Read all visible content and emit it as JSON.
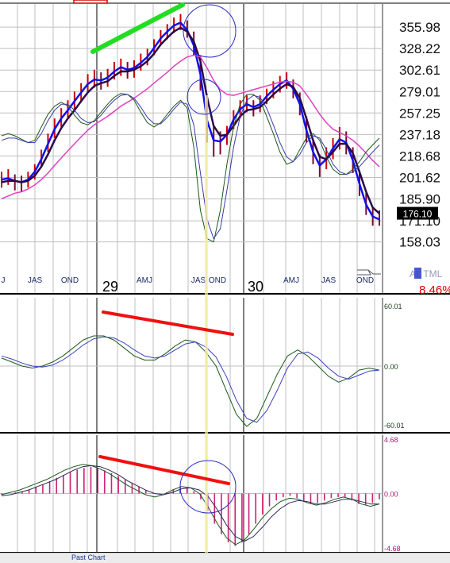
{
  "chart_data": [
    {
      "type": "line",
      "panel": "price",
      "y_scale": "log",
      "ylim": [
        150,
        385
      ],
      "y_ticks": [
        "355.98",
        "328.22",
        "302.61",
        "279.01",
        "257.25",
        "237.18",
        "218.68",
        "201.62",
        "185.90",
        "171.10",
        "158.03"
      ],
      "last_price": "176.10",
      "year_labels": [
        "29",
        "30"
      ],
      "month_labels": [
        "J",
        "JAS",
        "OND",
        "AMJ",
        "JAS",
        "OND",
        "AMJ",
        "JAS",
        "OND"
      ],
      "corner_text": "AL TML",
      "change": "8.46%",
      "series": [
        {
          "role": "price_high",
          "color": "#cc0000",
          "values": [
            206,
            208,
            204,
            203,
            206,
            212,
            224,
            238,
            252,
            262,
            270,
            279,
            288,
            298,
            303,
            300,
            304,
            312,
            316,
            312,
            314,
            322,
            328,
            340,
            352,
            360,
            369,
            374,
            365,
            350,
            320,
            270,
            245,
            240,
            245,
            260,
            270,
            275,
            270,
            275,
            282,
            290,
            296,
            300,
            292,
            278,
            254,
            232,
            220,
            226,
            234,
            244,
            240,
            226,
            207,
            190,
            180,
            178
          ]
        },
        {
          "role": "price_low",
          "color": "#cc0000",
          "values": [
            194,
            196,
            192,
            191,
            194,
            200,
            210,
            222,
            234,
            244,
            252,
            261,
            268,
            278,
            283,
            281,
            284,
            292,
            296,
            293,
            294,
            302,
            308,
            320,
            332,
            340,
            348,
            352,
            342,
            320,
            280,
            230,
            218,
            220,
            228,
            242,
            252,
            258,
            254,
            258,
            266,
            272,
            278,
            282,
            272,
            255,
            230,
            212,
            202,
            208,
            216,
            224,
            220,
            205,
            188,
            175,
            168,
            168
          ]
        },
        {
          "role": "ma_fast",
          "color": "#1010ee",
          "values": [
            200,
            201,
            199,
            198,
            200,
            206,
            216,
            229,
            242,
            252,
            260,
            269,
            278,
            287,
            292,
            291,
            294,
            301,
            306,
            303,
            305,
            311,
            318,
            329,
            341,
            350,
            358,
            362,
            352,
            332,
            298,
            250,
            232,
            231,
            237,
            251,
            261,
            266,
            263,
            266,
            274,
            281,
            287,
            291,
            282,
            266,
            241,
            222,
            211,
            216,
            225,
            233,
            230,
            215,
            197,
            182,
            174,
            172
          ]
        },
        {
          "role": "ma_mid",
          "color": "#2a0a4a",
          "values": [
            198,
            199,
            199,
            198,
            199,
            203,
            210,
            220,
            232,
            243,
            252,
            260,
            269,
            278,
            285,
            288,
            290,
            296,
            301,
            301,
            303,
            307,
            313,
            322,
            333,
            342,
            350,
            355,
            350,
            337,
            313,
            273,
            245,
            236,
            237,
            245,
            254,
            260,
            261,
            263,
            269,
            276,
            282,
            287,
            284,
            272,
            252,
            232,
            218,
            216,
            222,
            229,
            229,
            221,
            206,
            191,
            180,
            176
          ]
        },
        {
          "role": "ma_slow",
          "color": "#e040c0",
          "values": [
            186,
            188,
            190,
            191,
            193,
            196,
            200,
            205,
            211,
            217,
            223,
            229,
            235,
            241,
            246,
            250,
            254,
            259,
            264,
            268,
            272,
            277,
            282,
            288,
            294,
            300,
            307,
            313,
            318,
            320,
            318,
            305,
            291,
            281,
            276,
            275,
            277,
            279,
            281,
            283,
            285,
            287,
            289,
            290,
            289,
            285,
            276,
            266,
            256,
            248,
            242,
            239,
            236,
            232,
            227,
            221,
            215,
            210
          ]
        },
        {
          "role": "cycle_a",
          "color": "#1a5a1a",
          "values": [
            236,
            238,
            236,
            233,
            230,
            232,
            244,
            256,
            264,
            268,
            264,
            255,
            248,
            246,
            250,
            258,
            266,
            273,
            277,
            276,
            270,
            258,
            248,
            244,
            248,
            256,
            264,
            270,
            262,
            226,
            178,
            160,
            158,
            178,
            212,
            244,
            266,
            276,
            276,
            270,
            254,
            238,
            222,
            212,
            214,
            224,
            234,
            238,
            232,
            218,
            208,
            204,
            204,
            208,
            214,
            222,
            228,
            234
          ]
        },
        {
          "role": "cycle_b",
          "color": "#3a3aaa",
          "values": [
            232,
            234,
            234,
            232,
            230,
            230,
            238,
            250,
            260,
            266,
            266,
            260,
            252,
            248,
            249,
            255,
            263,
            270,
            275,
            276,
            272,
            263,
            253,
            247,
            247,
            253,
            261,
            268,
            266,
            246,
            205,
            172,
            160,
            166,
            192,
            226,
            254,
            270,
            275,
            273,
            262,
            246,
            230,
            218,
            214,
            220,
            230,
            236,
            234,
            224,
            212,
            206,
            204,
            206,
            210,
            216,
            222,
            228
          ]
        }
      ]
    },
    {
      "type": "line",
      "panel": "oscillator",
      "ylim": [
        -60.01,
        60.01
      ],
      "y_ticks": [
        "60.01",
        "0.00",
        "-60.01"
      ],
      "series": [
        {
          "role": "osc_fast",
          "color": "#1a5a1a",
          "values": [
            8,
            4,
            0,
            -2,
            0,
            4,
            10,
            18,
            26,
            30,
            30,
            26,
            18,
            10,
            6,
            6,
            12,
            20,
            26,
            24,
            14,
            0,
            -24,
            -48,
            -60,
            -52,
            -30,
            -8,
            10,
            16,
            10,
            0,
            -10,
            -16,
            -12,
            -4,
            -2,
            -4
          ]
        },
        {
          "role": "osc_slow",
          "color": "#4040c0",
          "values": [
            10,
            7,
            3,
            0,
            -1,
            1,
            6,
            13,
            21,
            27,
            29,
            28,
            23,
            16,
            10,
            8,
            10,
            16,
            22,
            24,
            19,
            9,
            -10,
            -34,
            -52,
            -56,
            -44,
            -24,
            -2,
            12,
            14,
            8,
            -2,
            -10,
            -13,
            -9,
            -5,
            -4
          ]
        }
      ]
    },
    {
      "type": "bar",
      "panel": "histogram",
      "ylim": [
        -4.68,
        4.68
      ],
      "y_ticks": [
        "4.68",
        "0.00",
        "-4.68"
      ],
      "values": [
        -0.1,
        0.0,
        0.1,
        0.2,
        0.35,
        0.55,
        0.8,
        1.05,
        1.35,
        1.6,
        1.85,
        2.05,
        2.2,
        2.3,
        2.2,
        2.0,
        1.75,
        1.5,
        1.2,
        0.9,
        0.6,
        0.3,
        0.1,
        -0.05,
        0.1,
        0.35,
        0.55,
        0.5,
        0.2,
        -0.5,
        -1.5,
        -2.6,
        -3.5,
        -4.2,
        -4.5,
        -4.2,
        -3.5,
        -2.6,
        -1.8,
        -1.1,
        -0.6,
        -0.3,
        -0.2,
        -0.4,
        -0.7,
        -0.9,
        -0.8,
        -0.6,
        -0.4,
        -0.3,
        -0.3,
        -0.6,
        -0.9,
        -1.0,
        -0.8,
        -0.5
      ],
      "series": [
        {
          "role": "hist_line_a",
          "color": "#1a5a1a",
          "values": [
            -0.1,
            0.1,
            0.3,
            0.6,
            0.9,
            1.2,
            1.6,
            2.0,
            2.3,
            2.5,
            2.4,
            2.1,
            1.7,
            1.2,
            0.7,
            0.3,
            -0.1,
            -0.3,
            -0.1,
            0.3,
            0.6,
            0.5,
            0.0,
            -1.2,
            -2.6,
            -3.8,
            -4.4,
            -4.0,
            -3.1,
            -2.1,
            -1.3,
            -0.7,
            -0.4,
            -0.5,
            -0.8,
            -1.0,
            -0.8,
            -0.5,
            -0.3,
            -0.5,
            -0.9,
            -1.1,
            -0.9
          ]
        },
        {
          "role": "hist_line_b",
          "color": "#2a2a5a",
          "values": [
            -0.2,
            -0.1,
            0.1,
            0.3,
            0.6,
            0.9,
            1.2,
            1.6,
            2.0,
            2.3,
            2.4,
            2.3,
            2.0,
            1.6,
            1.1,
            0.7,
            0.3,
            0.0,
            -0.1,
            0.1,
            0.4,
            0.5,
            0.3,
            -0.3,
            -1.4,
            -2.7,
            -3.7,
            -4.1,
            -3.7,
            -2.9,
            -2.0,
            -1.3,
            -0.8,
            -0.6,
            -0.7,
            -0.9,
            -0.9,
            -0.7,
            -0.5,
            -0.5,
            -0.7,
            -0.9,
            -0.9
          ]
        }
      ]
    }
  ],
  "footer": {
    "label": "Past Chart"
  }
}
